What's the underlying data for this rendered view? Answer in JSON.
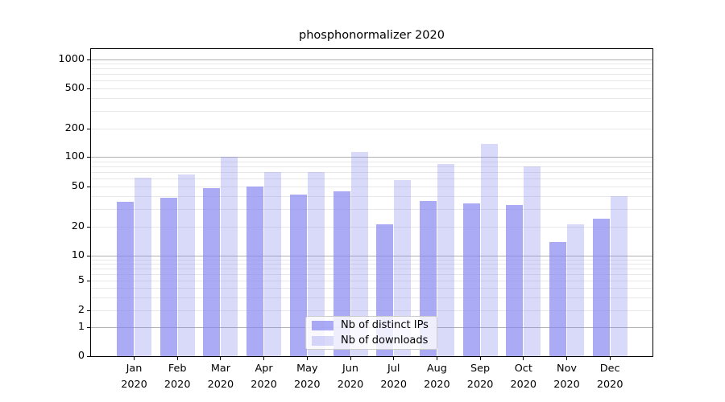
{
  "title": "phosphonormalizer 2020",
  "colors": {
    "bar_distinct_ips": "rgba(130,130,240,0.68)",
    "bar_downloads": "rgba(130,130,240,0.30)",
    "grid_major": "#b0b0b0",
    "grid_minor": "#e8e8e8",
    "spine": "#000000",
    "text": "#000000",
    "legend_border": "#cccccc",
    "legend_background": "rgba(255,255,255,0.8)"
  },
  "chart_data": {
    "type": "bar",
    "title": "phosphonormalizer 2020",
    "categories": [
      "Jan",
      "Feb",
      "Mar",
      "Apr",
      "May",
      "Jun",
      "Jul",
      "Aug",
      "Sep",
      "Oct",
      "Nov",
      "Dec"
    ],
    "category_year": "2020",
    "series": [
      {
        "name": "Nb of distinct IPs",
        "color": "rgba(130,130,240,0.68)",
        "values": [
          35,
          39,
          48,
          50,
          42,
          45,
          21,
          36,
          34,
          33,
          14,
          24
        ]
      },
      {
        "name": "Nb of downloads",
        "color": "rgba(130,130,240,0.30)",
        "values": [
          62,
          66,
          100,
          70,
          70,
          112,
          58,
          85,
          137,
          80,
          21,
          40
        ]
      }
    ],
    "y_axis": {
      "scale": "symlog",
      "tick_labels": [
        0,
        1,
        2,
        5,
        10,
        20,
        50,
        100,
        200,
        500,
        1000
      ],
      "top": 1000
    },
    "x_axis": {
      "tick_label_format": "month newline year"
    },
    "grid": true,
    "legend_position": "lower center"
  },
  "legend": {
    "items": [
      "Nb of distinct IPs",
      "Nb of downloads"
    ]
  }
}
